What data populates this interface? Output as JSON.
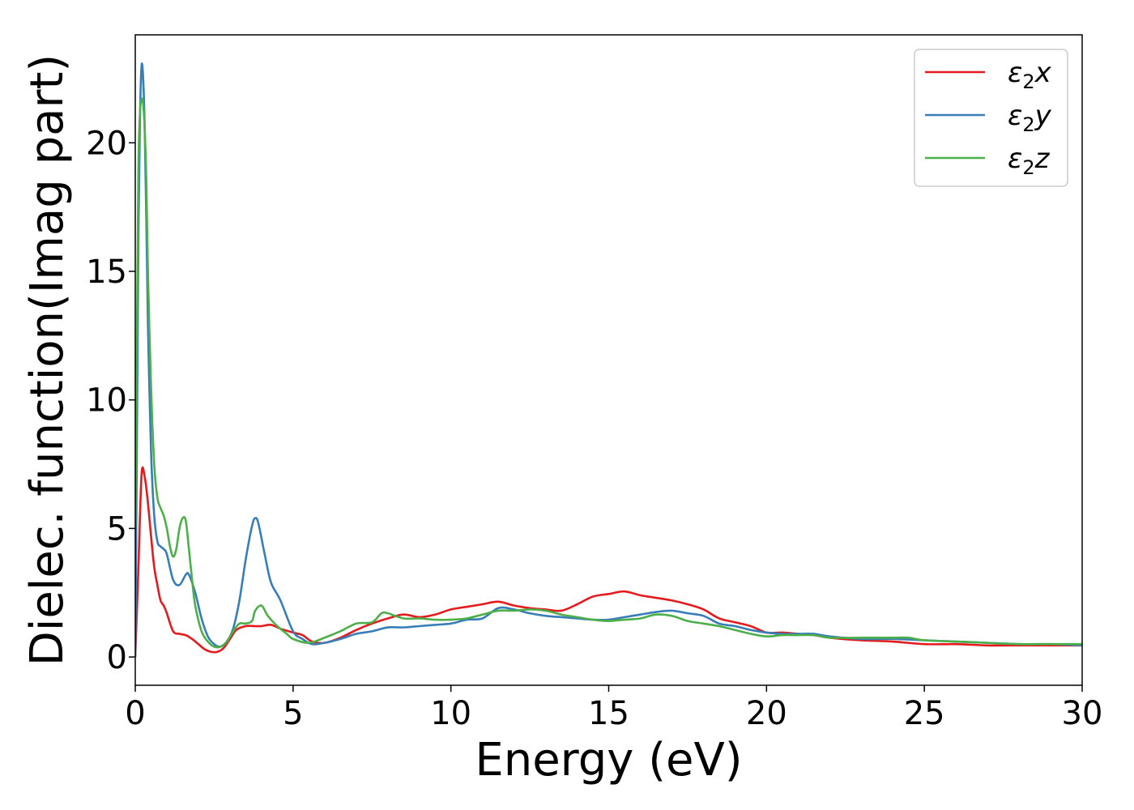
{
  "chart_data": {
    "type": "line",
    "title": "",
    "xlabel": "Energy (eV)",
    "ylabel": "Dielec. function(Imag part)",
    "xlim": [
      0,
      30
    ],
    "ylim": [
      -1.1,
      24.2
    ],
    "xticks": [
      0,
      5,
      10,
      15,
      20,
      25,
      30
    ],
    "xtick_labels": [
      "0",
      "5",
      "10",
      "15",
      "20",
      "25",
      "30"
    ],
    "yticks": [
      0,
      5,
      10,
      15,
      20
    ],
    "ytick_labels": [
      "0",
      "5",
      "10",
      "15",
      "20"
    ],
    "grid": false,
    "legend_position": "top-right",
    "series": [
      {
        "name": "ε₂x",
        "legend_base": "ε",
        "legend_sub": "2",
        "legend_suffix": "x",
        "color": "#e41a1c",
        "x": [
          0,
          0.1,
          0.2,
          0.3,
          0.4,
          0.5,
          0.6,
          0.7,
          0.8,
          0.9,
          1.0,
          1.2,
          1.4,
          1.6,
          1.8,
          2.0,
          2.2,
          2.4,
          2.6,
          2.8,
          3.0,
          3.2,
          3.5,
          3.8,
          4.0,
          4.3,
          4.6,
          5.0,
          5.3,
          5.6,
          6.0,
          6.5,
          7.0,
          7.5,
          8.0,
          8.5,
          9.0,
          9.5,
          10.0,
          10.5,
          11.0,
          11.5,
          12.0,
          12.5,
          13.0,
          13.5,
          14.0,
          14.5,
          15.0,
          15.5,
          16.0,
          16.5,
          17.0,
          17.5,
          18.0,
          18.5,
          19.0,
          19.5,
          20.0,
          20.5,
          21.0,
          21.5,
          22.0,
          23.0,
          24.0,
          25.0,
          26.0,
          27.0,
          28.0,
          29.0,
          30.0
        ],
        "y": [
          0.0,
          3.5,
          7.1,
          7.0,
          6.0,
          4.7,
          3.5,
          2.8,
          2.2,
          2.0,
          1.7,
          1.0,
          0.9,
          0.85,
          0.7,
          0.5,
          0.3,
          0.2,
          0.2,
          0.35,
          0.7,
          1.05,
          1.2,
          1.2,
          1.2,
          1.25,
          1.1,
          0.95,
          0.85,
          0.6,
          0.55,
          0.75,
          1.05,
          1.3,
          1.5,
          1.65,
          1.55,
          1.65,
          1.85,
          1.95,
          2.05,
          2.15,
          2.0,
          1.9,
          1.85,
          1.8,
          2.05,
          2.35,
          2.45,
          2.55,
          2.4,
          2.3,
          2.2,
          2.05,
          1.85,
          1.5,
          1.35,
          1.2,
          0.95,
          0.95,
          0.9,
          0.85,
          0.75,
          0.65,
          0.6,
          0.5,
          0.5,
          0.45,
          0.45,
          0.45,
          0.45
        ]
      },
      {
        "name": "ε₂y",
        "legend_base": "ε",
        "legend_sub": "2",
        "legend_suffix": "y",
        "color": "#377eb8",
        "x": [
          0,
          0.05,
          0.1,
          0.15,
          0.2,
          0.25,
          0.3,
          0.35,
          0.4,
          0.5,
          0.6,
          0.7,
          0.8,
          0.9,
          1.0,
          1.2,
          1.4,
          1.6,
          1.7,
          1.9,
          2.1,
          2.3,
          2.5,
          2.7,
          2.9,
          3.1,
          3.3,
          3.5,
          3.7,
          3.8,
          3.9,
          4.1,
          4.3,
          4.6,
          5.0,
          5.3,
          5.6,
          6.0,
          6.5,
          7.0,
          7.5,
          8.0,
          8.5,
          9.0,
          9.5,
          10.0,
          10.5,
          11.0,
          11.5,
          12.0,
          12.5,
          13.0,
          13.5,
          14.0,
          14.5,
          15.0,
          15.5,
          16.0,
          16.5,
          17.0,
          17.5,
          18.0,
          18.5,
          19.0,
          19.5,
          20.0,
          20.5,
          21.0,
          21.5,
          22.0,
          23.0,
          24.0,
          25.0,
          26.0,
          27.0,
          28.0,
          29.0,
          30.0
        ],
        "y": [
          0.0,
          8.0,
          16.5,
          21.0,
          23.0,
          22.5,
          20.5,
          17.0,
          13.0,
          8.0,
          5.5,
          4.5,
          4.3,
          4.2,
          4.0,
          3.0,
          2.8,
          3.2,
          3.2,
          2.5,
          1.5,
          0.8,
          0.5,
          0.4,
          0.6,
          1.1,
          2.2,
          3.8,
          5.1,
          5.4,
          5.2,
          4.0,
          2.9,
          2.2,
          1.0,
          0.7,
          0.5,
          0.55,
          0.7,
          0.9,
          1.0,
          1.15,
          1.15,
          1.2,
          1.25,
          1.3,
          1.45,
          1.5,
          1.9,
          1.85,
          1.7,
          1.6,
          1.55,
          1.5,
          1.45,
          1.45,
          1.55,
          1.65,
          1.75,
          1.8,
          1.7,
          1.6,
          1.3,
          1.2,
          1.05,
          0.95,
          0.9,
          0.9,
          0.9,
          0.8,
          0.7,
          0.7,
          0.65,
          0.6,
          0.55,
          0.5,
          0.5,
          0.45
        ]
      },
      {
        "name": "ε₂z",
        "legend_base": "ε",
        "legend_sub": "2",
        "legend_suffix": "z",
        "color": "#4daf4a",
        "x": [
          0,
          0.05,
          0.1,
          0.15,
          0.2,
          0.25,
          0.3,
          0.35,
          0.4,
          0.5,
          0.6,
          0.7,
          0.8,
          0.9,
          1.0,
          1.1,
          1.2,
          1.3,
          1.4,
          1.5,
          1.6,
          1.7,
          1.8,
          1.9,
          2.1,
          2.3,
          2.5,
          2.7,
          2.9,
          3.1,
          3.3,
          3.5,
          3.7,
          3.8,
          4.0,
          4.2,
          4.5,
          4.8,
          5.0,
          5.5,
          6.0,
          6.5,
          7.0,
          7.5,
          7.8,
          8.0,
          8.5,
          9.0,
          9.5,
          10.0,
          10.5,
          11.0,
          11.5,
          12.0,
          12.5,
          13.0,
          13.5,
          14.0,
          14.5,
          15.0,
          15.5,
          16.0,
          16.5,
          17.0,
          17.5,
          18.0,
          18.5,
          19.0,
          19.5,
          20.0,
          20.5,
          21.0,
          21.5,
          22.0,
          23.0,
          24.0,
          24.5,
          25.0,
          26.0,
          27.0,
          28.0,
          29.0,
          30.0
        ],
        "y": [
          5.0,
          12.0,
          19.0,
          21.2,
          21.7,
          21.5,
          20.5,
          18.5,
          15.0,
          10.5,
          7.5,
          6.2,
          5.8,
          5.5,
          5.0,
          4.3,
          3.9,
          4.2,
          5.0,
          5.4,
          5.3,
          4.2,
          3.0,
          2.0,
          1.0,
          0.6,
          0.4,
          0.4,
          0.6,
          1.0,
          1.3,
          1.3,
          1.4,
          1.8,
          2.0,
          1.6,
          1.2,
          0.9,
          0.7,
          0.55,
          0.75,
          1.0,
          1.3,
          1.35,
          1.7,
          1.7,
          1.5,
          1.5,
          1.45,
          1.45,
          1.5,
          1.65,
          1.8,
          1.8,
          1.85,
          1.8,
          1.65,
          1.55,
          1.45,
          1.4,
          1.45,
          1.5,
          1.65,
          1.6,
          1.4,
          1.3,
          1.2,
          1.05,
          0.9,
          0.8,
          0.85,
          0.85,
          0.85,
          0.75,
          0.75,
          0.75,
          0.75,
          0.65,
          0.6,
          0.55,
          0.5,
          0.5,
          0.5
        ]
      }
    ]
  }
}
